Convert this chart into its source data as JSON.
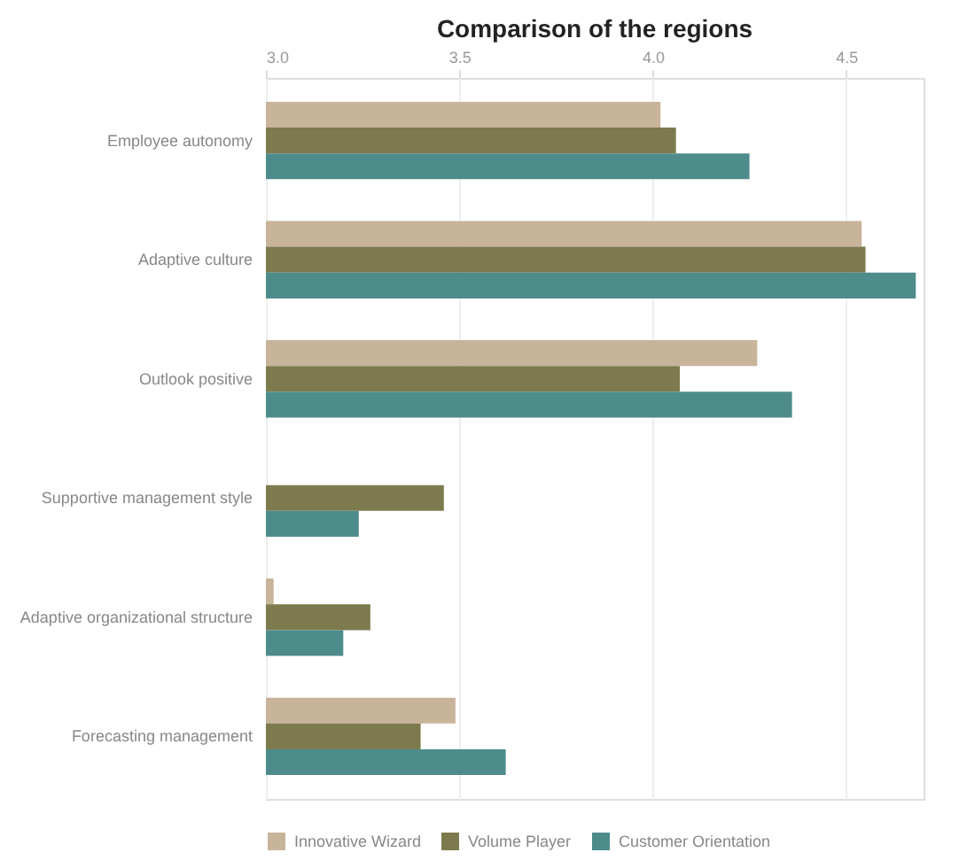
{
  "chart_data": {
    "type": "bar",
    "orientation": "horizontal",
    "title": "Comparison of the regions",
    "categories": [
      "Employee autonomy",
      "Adaptive culture",
      "Outlook positive",
      "Supportive management style",
      "Adaptive organizational structure",
      "Forecasting management"
    ],
    "series": [
      {
        "name": "Innovative Wizard",
        "color": "#c8b49a",
        "values": [
          4.02,
          4.54,
          4.27,
          null,
          3.02,
          3.49
        ]
      },
      {
        "name": "Volume Player",
        "color": "#7d7a4e",
        "values": [
          4.06,
          4.55,
          4.07,
          3.46,
          3.27,
          3.4
        ]
      },
      {
        "name": "Customer Orientation",
        "color": "#4e8c8c",
        "values": [
          4.25,
          4.68,
          4.36,
          3.24,
          3.2,
          3.62
        ]
      }
    ],
    "xlim": [
      3,
      4.7
    ],
    "xticks": [
      {
        "value": 3,
        "label": "3.0"
      },
      3.5,
      {
        "value": 4,
        "label": "4.0"
      },
      4.5
    ],
    "grid": "x",
    "legend": "bottom"
  }
}
